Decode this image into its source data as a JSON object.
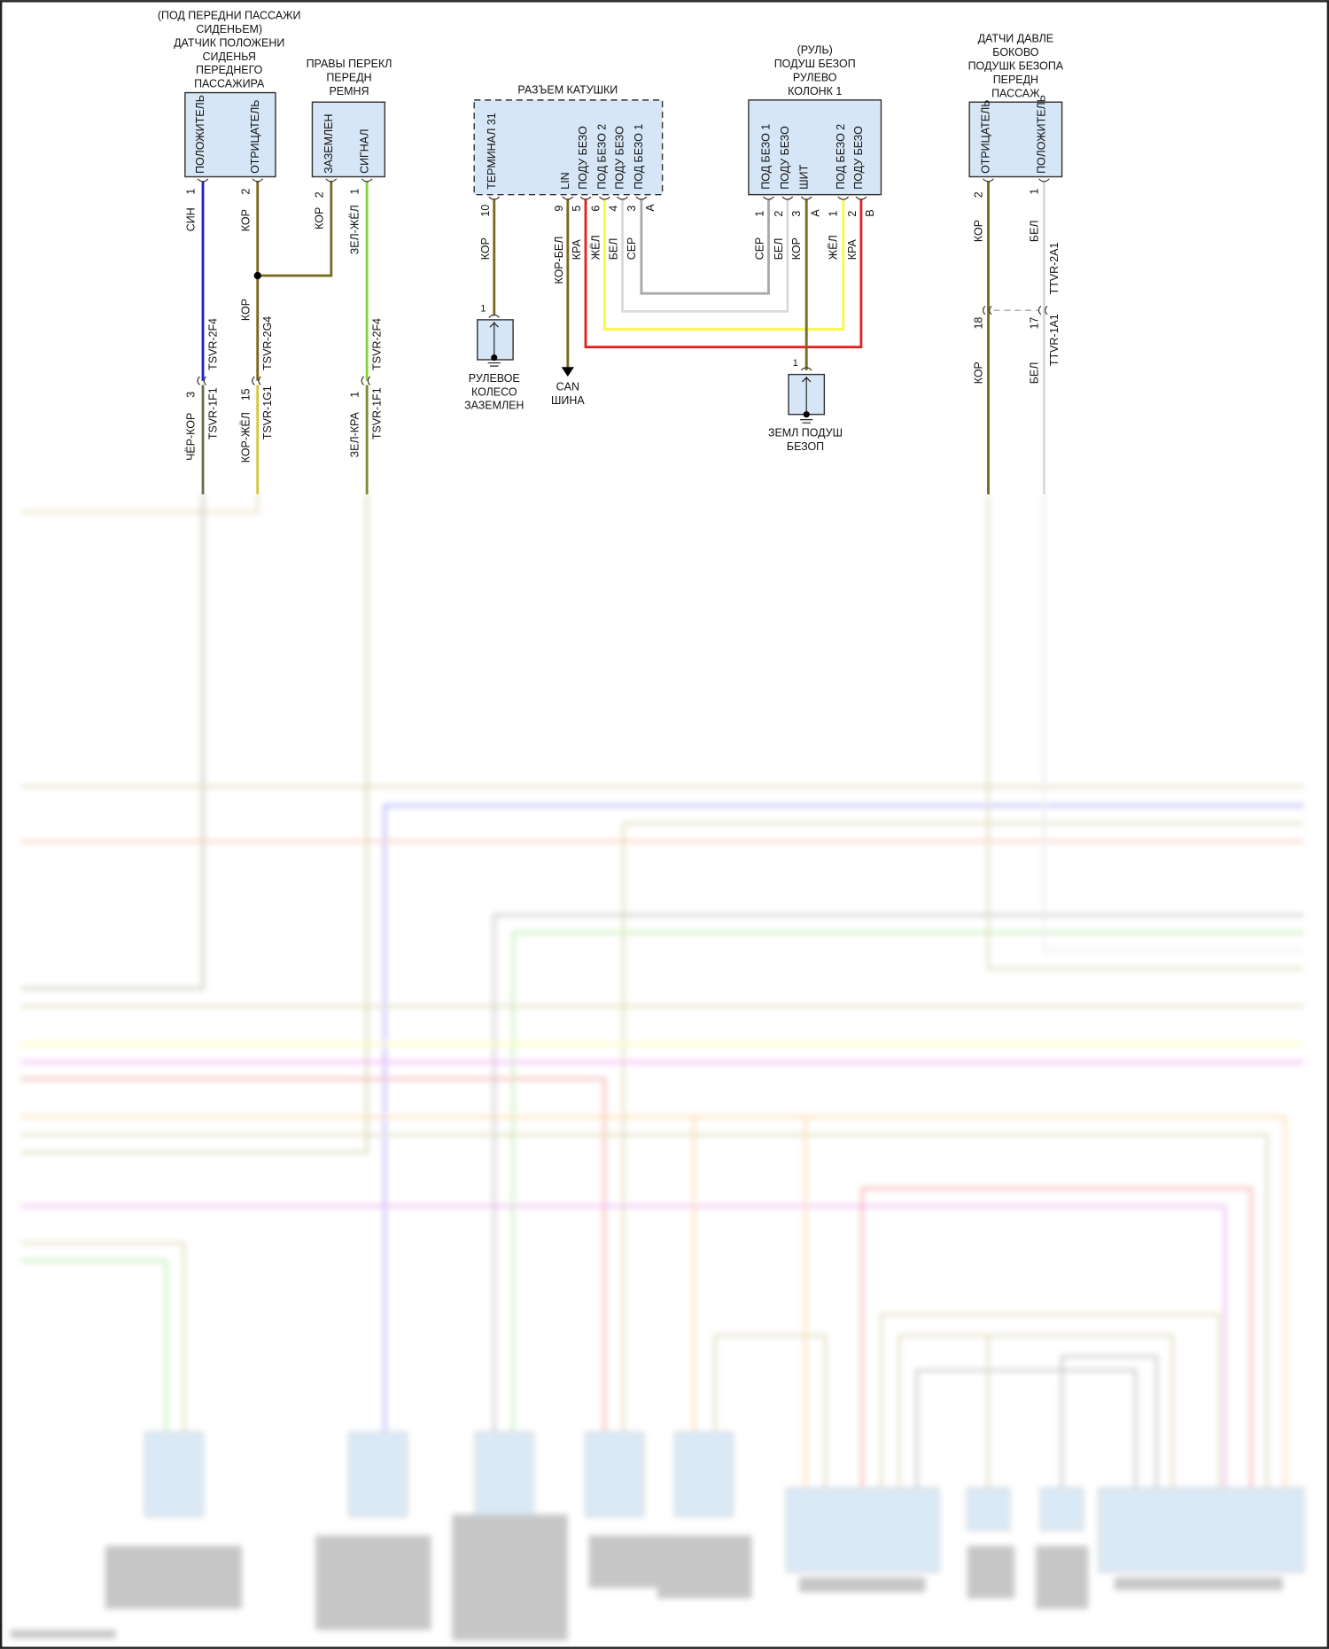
{
  "colors": {
    "blue": "#1f22c0",
    "brown": "#7a6820",
    "green": "#86d23c",
    "red": "#e02222",
    "yellow": "#fafa3c",
    "white": "#dadada",
    "gray": "#a9a9a9",
    "box_fill": "#d6e6f7"
  },
  "seat_sensor": {
    "title": [
      "(ПОД ПЕРЕДНИ ПАССАЖИ",
      "СИДЕНЬЕМ)",
      "ДАТЧИК ПОЛОЖЕНИ",
      "СИДЕНЬЯ",
      "ПЕРЕДНЕГО",
      "ПАССАЖИРА"
    ],
    "pins": [
      {
        "label": "ПОЛОЖИТЕЛЬ",
        "num": "1",
        "wire": "СИН"
      },
      {
        "label": "ОТРИЦАТЕЛЬ",
        "num": "2",
        "wire": "КОР"
      }
    ]
  },
  "belt_switch": {
    "title": [
      "ПРАВЫ ПЕРЕКЛ",
      "ПЕРЕДН",
      "РЕМНЯ"
    ],
    "pins": [
      {
        "label": "ЗАЗЕМЛЕН",
        "num": "2",
        "wire": "КОР"
      },
      {
        "label": "СИГНАЛ",
        "num": "1",
        "wire": "ЗЕЛ-ЖЁЛ"
      }
    ]
  },
  "splice_wire": "КОР",
  "inline_connectors": [
    {
      "upper": "TSVR-2F4",
      "lower": "TSVR-1F1",
      "num": "3",
      "wire": "ЧЁР-КОР"
    },
    {
      "upper": "TSVR-2G4",
      "lower": "TSVR-1G1",
      "num": "15",
      "wire": "КОР-ЖЁЛ"
    },
    {
      "upper": "TSVR-2F4",
      "lower": "TSVR-1F1",
      "num": "1",
      "wire": "ЗЕЛ-КРА"
    }
  ],
  "coil_connector": {
    "title": "РАЗЪЕМ КАТУШКИ",
    "pins": [
      {
        "label": "ТЕРМИНАЛ 31",
        "num": "10",
        "wire": "КОР"
      },
      {
        "label": "LIN",
        "num": "9",
        "wire": "КОР-БЕЛ"
      },
      {
        "label": "ПОДУ БЕЗО",
        "num": "5",
        "wire": "КРА"
      },
      {
        "label": "ПОД БЕЗО 2",
        "num": "6",
        "wire": "ЖЁЛ"
      },
      {
        "label": "ПОДУ БЕЗО",
        "num": "4",
        "wire": "БЕЛ"
      },
      {
        "label": "ПОД БЕЗО 1",
        "num": "3",
        "wire": "СЕР"
      }
    ],
    "extra_pin": "A"
  },
  "steering_airbag": {
    "title": [
      "(РУЛЬ)",
      "ПОДУШ БЕЗОП",
      "РУЛЕВО",
      "КОЛОНК 1"
    ],
    "pins": [
      {
        "label": "ПОД БЕЗО 1",
        "num": "1",
        "wire": "СЕР"
      },
      {
        "label": "ПОДУ БЕЗО",
        "num": "2",
        "wire": "БЕЛ"
      },
      {
        "label": "ШИТ",
        "num": "3",
        "wire": "КОР"
      },
      {
        "label": "",
        "num": "A",
        "wire": ""
      },
      {
        "label": "ПОД БЕЗО 2",
        "num": "1",
        "wire": "ЖЁЛ"
      },
      {
        "label": "ПОДУ БЕЗО",
        "num": "2",
        "wire": "КРА"
      },
      {
        "label": "",
        "num": "B",
        "wire": ""
      }
    ]
  },
  "steering_ground": {
    "title": [
      "РУЛЕВОЕ",
      "КОЛЕСО",
      "ЗАЗЕМЛЕН"
    ],
    "num": "1"
  },
  "can_bus": {
    "title": [
      "CAN",
      "ШИНА"
    ]
  },
  "airbag_ground": {
    "title": [
      "ЗЕМЛ ПОДУШ",
      "БЕЗОП"
    ],
    "num": "1"
  },
  "side_pressure_sensor": {
    "title": [
      "ДАТЧИ ДАВЛЕ",
      "БОКОВО",
      "ПОДУШК БЕЗОПА",
      "ПЕРЕДН",
      "ПАССАЖ"
    ],
    "pins": [
      {
        "label": "ОТРИЦАТЕЛЬ",
        "num": "2",
        "wire": "КОР",
        "lower_num": "18",
        "lower_wire": "КОР"
      },
      {
        "label": "ПОЛОЖИТЕЛЬ",
        "num": "1",
        "wire": "БЕЛ",
        "lower_num": "17",
        "lower_wire": "БЕЛ"
      }
    ],
    "upper_conn": "TTVR-2A1",
    "lower_conn": "TTVR-1A1"
  }
}
